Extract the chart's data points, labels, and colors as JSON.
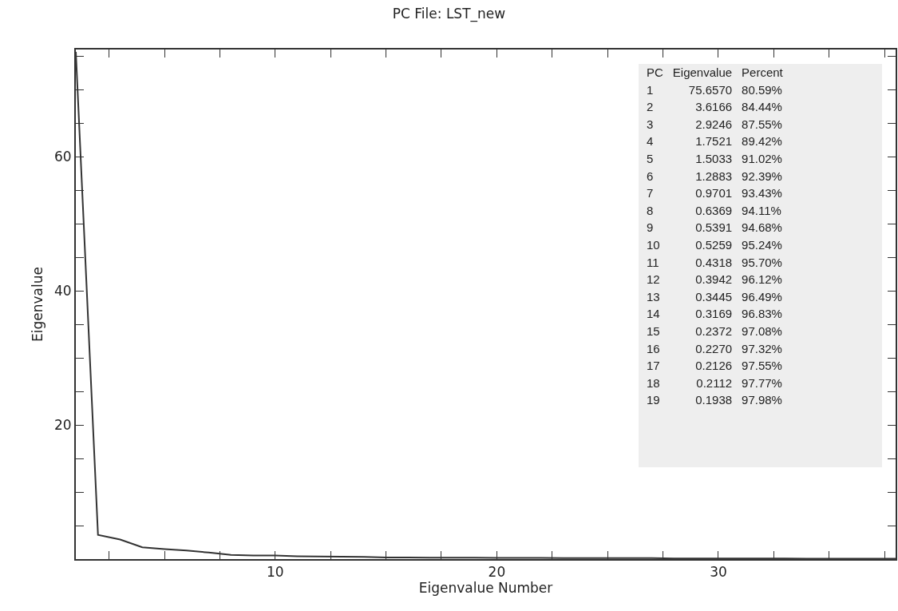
{
  "chart_data": {
    "type": "line",
    "title": "PC File: LST_new",
    "xlabel": "Eigenvalue Number",
    "ylabel": "Eigenvalue",
    "x": [
      1,
      2,
      3,
      4,
      5,
      6,
      7,
      8,
      9,
      10,
      11,
      12,
      13,
      14,
      15,
      16,
      17,
      18,
      19,
      20,
      21,
      22,
      23,
      24,
      25,
      26,
      27,
      28,
      29,
      30,
      31,
      32,
      33,
      34,
      35,
      36,
      37,
      38
    ],
    "values": [
      75.657,
      3.6166,
      2.9246,
      1.7521,
      1.5033,
      1.2883,
      0.9701,
      0.6369,
      0.5391,
      0.5259,
      0.4318,
      0.3942,
      0.3445,
      0.3169,
      0.2372,
      0.227,
      0.2126,
      0.2112,
      0.1938,
      0.18,
      0.17,
      0.17,
      0.16,
      0.16,
      0.15,
      0.15,
      0.15,
      0.1,
      0.1,
      0.09,
      0.09,
      0.08,
      0.08,
      0.07,
      0.07,
      0.06,
      0.06,
      0.05
    ],
    "annotations": [
      "PC",
      "Eigenvalue",
      "Percent",
      "1",
      "75.6570",
      "80.59%",
      "2",
      "3.6166",
      "84.44%",
      "3",
      "2.9246",
      "87.55%",
      "4",
      "1.7521",
      "89.42%",
      "5",
      "1.5033",
      "91.02%",
      "6",
      "1.2883",
      "92.39%",
      "7",
      "0.9701",
      "93.43%",
      "8",
      "0.6369",
      "94.11%",
      "9",
      "0.5391",
      "94.68%",
      "10",
      "0.5259",
      "95.24%",
      "11",
      "0.4318",
      "95.70%",
      "12",
      "0.3942",
      "96.12%",
      "13",
      "0.3445",
      "96.49%",
      "14",
      "0.3169",
      "96.83%",
      "15",
      "0.2372",
      "97.08%",
      "16",
      "0.2270",
      "97.32%",
      "17",
      "0.2126",
      "97.55%",
      "18",
      "0.2112",
      "97.77%",
      "19",
      "0.1938",
      "97.98%"
    ],
    "color": "#333333",
    "xlim": [
      1,
      38
    ],
    "ylim": [
      0,
      76
    ],
    "xticks": [
      {
        "value": 2.5,
        "label": null
      },
      {
        "value": 5,
        "label": null
      },
      {
        "value": 7.5,
        "label": null
      },
      10,
      {
        "value": 12.5,
        "label": null
      },
      {
        "value": 15,
        "label": null
      },
      {
        "value": 17.5,
        "label": null
      },
      20,
      {
        "value": 22.5,
        "label": null
      },
      {
        "value": 25,
        "label": null
      },
      {
        "value": 27.5,
        "label": null
      },
      30,
      {
        "value": 32.5,
        "label": null
      },
      {
        "value": 35,
        "label": null
      },
      {
        "value": 37.5,
        "label": null
      }
    ],
    "yticks": [
      {
        "value": 5,
        "label": null
      },
      {
        "value": 10,
        "label": null
      },
      {
        "value": 15,
        "label": null
      },
      20,
      {
        "value": 25,
        "label": null
      },
      {
        "value": 30,
        "label": null
      },
      {
        "value": 35,
        "label": null
      },
      40,
      {
        "value": 45,
        "label": null
      },
      {
        "value": 50,
        "label": null
      },
      {
        "value": 55,
        "label": null
      },
      60,
      {
        "value": 65,
        "label": null
      },
      {
        "value": 70,
        "label": null
      },
      {
        "value": 75,
        "label": null
      }
    ],
    "grid": false,
    "legend": false,
    "marker": "none",
    "line_style": "solid"
  }
}
